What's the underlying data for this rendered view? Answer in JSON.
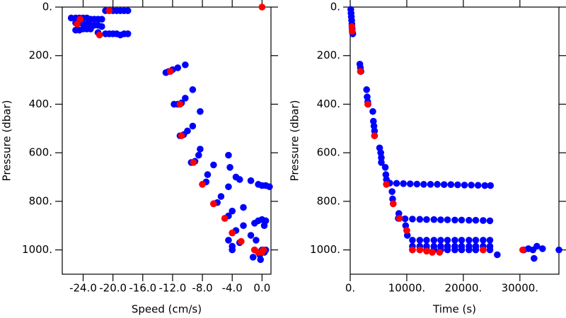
{
  "chart_data": [
    {
      "type": "scatter",
      "xlabel": "Speed (cm/s)",
      "ylabel": "Pressure (dbar)",
      "xlim": [
        -26.8,
        1.2
      ],
      "ylim": [
        1100,
        0
      ],
      "xticks": [
        {
          "value": -24,
          "label": "-24.0"
        },
        {
          "value": -20,
          "label": "-20.0"
        },
        {
          "value": -16,
          "label": "-16.0"
        },
        {
          "value": -12,
          "label": "-12.0"
        },
        {
          "value": -8,
          "label": "-8.0"
        },
        {
          "value": -4,
          "label": "-4.0"
        },
        {
          "value": 0,
          "label": "0.0"
        }
      ],
      "yticks": [
        {
          "value": 0,
          "label": "0."
        },
        {
          "value": 200,
          "label": "200."
        },
        {
          "value": 400,
          "label": "400."
        },
        {
          "value": 600,
          "label": "600."
        },
        {
          "value": 800,
          "label": "800."
        },
        {
          "value": 1000,
          "label": "1000."
        }
      ],
      "series": [
        {
          "color": "#0000ff",
          "x": [
            -25.6,
            -25,
            -24.5,
            -24,
            -23.5,
            -23,
            -22.5,
            -22,
            -21.5,
            -25,
            -24.5,
            -24,
            -23.5,
            -23,
            -22.5,
            -22,
            -21.5,
            -25,
            -24.5,
            -24,
            -23.5,
            -23,
            -22,
            -21,
            -20.5,
            -20,
            -19.5,
            -19,
            -18.5,
            -18,
            -21,
            -20.5,
            -20,
            -19.5,
            -19,
            -18.5,
            -18,
            -12.9,
            -12.5,
            -12,
            -11.3,
            -10.3,
            -11.8,
            -11.3,
            -10.8,
            -10.3,
            -9.3,
            -11,
            -10.5,
            -10,
            -9.3,
            -8.3,
            -9.5,
            -9,
            -8.5,
            -8.3,
            -8,
            -7.5,
            -7.3,
            -6.5,
            -4.5,
            -3,
            -1.5,
            -0.5,
            0,
            0.5,
            1,
            -6.5,
            -6,
            -5.5,
            -4.5,
            -3.5,
            -4.3,
            -5,
            -4.5,
            -4,
            -2.5,
            -1,
            -0.5,
            0,
            0.5,
            0.3,
            -4,
            -3.5,
            -2.5,
            -1.5,
            -0.8,
            -4.5,
            -4,
            -3,
            -1,
            -0.5,
            -0.3,
            0,
            0.3,
            0.5,
            -1.2,
            -0.2,
            -4
          ],
          "values": [
            45,
            45,
            45,
            45,
            45,
            50,
            50,
            50,
            50,
            65,
            65,
            70,
            70,
            75,
            75,
            75,
            80,
            95,
            95,
            90,
            90,
            90,
            105,
            110,
            110,
            110,
            110,
            115,
            110,
            110,
            15,
            15,
            15,
            15,
            15,
            15,
            15,
            270,
            265,
            258,
            250,
            238,
            400,
            400,
            395,
            375,
            340,
            530,
            525,
            510,
            490,
            430,
            640,
            635,
            610,
            585,
            730,
            720,
            690,
            650,
            610,
            710,
            715,
            730,
            735,
            735,
            740,
            810,
            805,
            780,
            740,
            700,
            660,
            870,
            860,
            840,
            825,
            890,
            880,
            875,
            880,
            900,
            930,
            920,
            900,
            940,
            960,
            960,
            985,
            970,
            1000,
            1010,
            1020,
            1000,
            1010,
            1000,
            1030,
            1040,
            1000
          ]
        },
        {
          "color": "#ff0000",
          "x": [
            -24.8,
            -24.4,
            -21.8,
            -20.5,
            0,
            -12.3,
            -11,
            -10.8,
            -9.2,
            -8,
            -6.5,
            -5,
            -4,
            -2.8,
            -1,
            -0.5,
            0,
            0.2
          ],
          "values": [
            70,
            50,
            115,
            15,
            0,
            265,
            400,
            530,
            640,
            730,
            810,
            870,
            930,
            965,
            1000,
            1010,
            1010,
            1000
          ]
        }
      ]
    },
    {
      "type": "scatter",
      "xlabel": "Time (s)",
      "ylabel": "Pressure (dbar)",
      "xlim": [
        0,
        36900
      ],
      "ylim": [
        1100,
        0
      ],
      "xticks": [
        {
          "value": 0,
          "label": "0."
        },
        {
          "value": 10000,
          "label": "10000."
        },
        {
          "value": 20000,
          "label": "20000."
        },
        {
          "value": 30000,
          "label": "30000."
        }
      ],
      "yticks": [
        {
          "value": 0,
          "label": "0."
        },
        {
          "value": 200,
          "label": "200."
        },
        {
          "value": 400,
          "label": "400."
        },
        {
          "value": 600,
          "label": "600."
        },
        {
          "value": 800,
          "label": "800."
        },
        {
          "value": 1000,
          "label": "1000."
        }
      ],
      "series": [
        {
          "color": "#0000ff",
          "x": [
            100,
            150,
            200,
            250,
            300,
            350,
            400,
            450,
            1700,
            1800,
            1900,
            2900,
            3000,
            3100,
            3150,
            4000,
            4100,
            4200,
            4300,
            4300,
            5200,
            5400,
            5500,
            5500,
            6200,
            6300,
            6400,
            6400,
            7400,
            7500,
            7600,
            8600,
            8700,
            9800,
            10000,
            10100,
            7000,
            8200,
            9400,
            10600,
            11800,
            13000,
            14200,
            15400,
            16600,
            17800,
            19000,
            20200,
            21400,
            22600,
            23800,
            24800,
            8500,
            9700,
            11000,
            12300,
            13500,
            14800,
            16000,
            17200,
            18500,
            19700,
            21000,
            22200,
            23500,
            24700,
            11000,
            12300,
            13500,
            14800,
            16000,
            17200,
            18500,
            19700,
            21000,
            22200,
            23500,
            24700,
            11000,
            12300,
            13500,
            14800,
            16000,
            17200,
            18500,
            19700,
            21000,
            22200,
            23500,
            24700,
            11000,
            12300,
            13500,
            14800,
            16000,
            17200,
            18500,
            19700,
            21000,
            22200,
            23500,
            24700,
            26000,
            30700,
            31500,
            32300,
            32500,
            33000,
            34000,
            36900
          ],
          "values": [
            10,
            25,
            40,
            55,
            70,
            90,
            105,
            110,
            235,
            250,
            265,
            340,
            370,
            390,
            400,
            430,
            470,
            490,
            510,
            530,
            580,
            600,
            620,
            640,
            660,
            690,
            710,
            730,
            760,
            790,
            810,
            850,
            870,
            900,
            920,
            940,
            725,
            726,
            727,
            728,
            729,
            730,
            730,
            730,
            731,
            731,
            732,
            733,
            733,
            734,
            735,
            735,
            870,
            872,
            873,
            874,
            875,
            875,
            876,
            876,
            877,
            877,
            878,
            878,
            879,
            880,
            960,
            960,
            960,
            960,
            960,
            960,
            960,
            960,
            960,
            960,
            960,
            960,
            985,
            985,
            985,
            985,
            985,
            985,
            985,
            985,
            985,
            985,
            985,
            985,
            1000,
            1000,
            1000,
            1000,
            1000,
            1000,
            1000,
            1000,
            1000,
            1000,
            1000,
            1000,
            1020,
            1000,
            995,
            1000,
            1035,
            985,
            995,
            1000
          ]
        },
        {
          "color": "#ff0000",
          "x": [
            300,
            350,
            1800,
            3100,
            4300,
            6400,
            7600,
            8700,
            10000,
            11000,
            12300,
            13500,
            14500,
            15800,
            23500,
            30500
          ],
          "values": [
            80,
            100,
            265,
            400,
            530,
            730,
            810,
            870,
            920,
            1000,
            1000,
            1005,
            1010,
            1010,
            1000,
            1000
          ]
        }
      ]
    }
  ]
}
